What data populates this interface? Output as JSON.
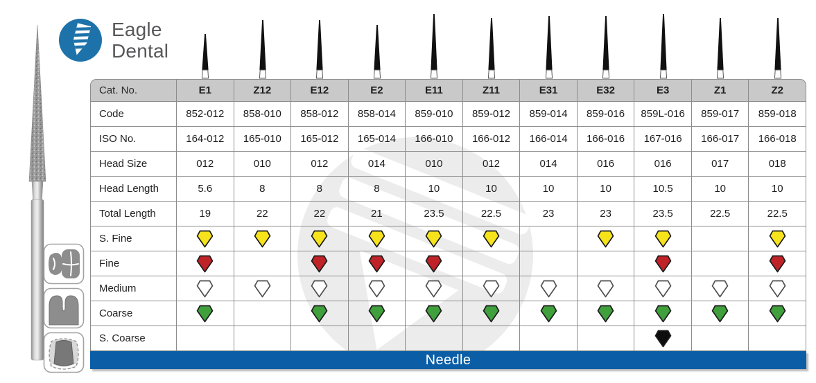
{
  "brand": {
    "line1": "Eagle",
    "line2": "Dental"
  },
  "colors": {
    "accent_blue": "#0b5ea6",
    "logo_blue": "#1e72aa",
    "header_gray": "#c9c9c9",
    "grits": {
      "s_fine": "#f6e31b",
      "fine": "#bf2227",
      "medium": "#ffffff",
      "coarse": "#3fa03c",
      "s_coarse": "#0d0d0d"
    }
  },
  "side_icons": [
    {
      "name": "molar-occlusal"
    },
    {
      "name": "crown-section"
    },
    {
      "name": "tooth-prep"
    }
  ],
  "table": {
    "corner_label": "Cat. No.",
    "footer_label": "Needle",
    "spec_rows": [
      {
        "key": "code",
        "label": "Code"
      },
      {
        "key": "iso",
        "label": "ISO No."
      },
      {
        "key": "head_size",
        "label": "Head Size"
      },
      {
        "key": "head_length",
        "label": "Head Length"
      },
      {
        "key": "total_length",
        "label": "Total Length"
      }
    ],
    "grit_rows": [
      {
        "key": "s_fine",
        "label": "S. Fine"
      },
      {
        "key": "fine",
        "label": "Fine"
      },
      {
        "key": "medium",
        "label": "Medium"
      },
      {
        "key": "coarse",
        "label": "Coarse"
      },
      {
        "key": "s_coarse",
        "label": "S. Coarse"
      }
    ],
    "columns": [
      {
        "cat_no": "E1",
        "code": "852-012",
        "iso": "164-012",
        "head_size": "012",
        "head_length": "5.6",
        "total_length": "19",
        "grits": {
          "s_fine": true,
          "fine": true,
          "medium": true,
          "coarse": true,
          "s_coarse": false
        }
      },
      {
        "cat_no": "Z12",
        "code": "858-010",
        "iso": "165-010",
        "head_size": "010",
        "head_length": "8",
        "total_length": "22",
        "grits": {
          "s_fine": true,
          "fine": false,
          "medium": true,
          "coarse": false,
          "s_coarse": false
        }
      },
      {
        "cat_no": "E12",
        "code": "858-012",
        "iso": "165-012",
        "head_size": "012",
        "head_length": "8",
        "total_length": "22",
        "grits": {
          "s_fine": true,
          "fine": true,
          "medium": true,
          "coarse": true,
          "s_coarse": false
        }
      },
      {
        "cat_no": "E2",
        "code": "858-014",
        "iso": "165-014",
        "head_size": "014",
        "head_length": "8",
        "total_length": "21",
        "grits": {
          "s_fine": true,
          "fine": true,
          "medium": true,
          "coarse": true,
          "s_coarse": false
        }
      },
      {
        "cat_no": "E11",
        "code": "859-010",
        "iso": "166-010",
        "head_size": "010",
        "head_length": "10",
        "total_length": "23.5",
        "grits": {
          "s_fine": true,
          "fine": true,
          "medium": true,
          "coarse": true,
          "s_coarse": false
        }
      },
      {
        "cat_no": "Z11",
        "code": "859-012",
        "iso": "166-012",
        "head_size": "012",
        "head_length": "10",
        "total_length": "22.5",
        "grits": {
          "s_fine": true,
          "fine": false,
          "medium": true,
          "coarse": true,
          "s_coarse": false
        }
      },
      {
        "cat_no": "E31",
        "code": "859-014",
        "iso": "166-014",
        "head_size": "014",
        "head_length": "10",
        "total_length": "23",
        "grits": {
          "s_fine": false,
          "fine": false,
          "medium": true,
          "coarse": true,
          "s_coarse": false
        }
      },
      {
        "cat_no": "E32",
        "code": "859-016",
        "iso": "166-016",
        "head_size": "016",
        "head_length": "10",
        "total_length": "23",
        "grits": {
          "s_fine": true,
          "fine": false,
          "medium": true,
          "coarse": true,
          "s_coarse": false
        }
      },
      {
        "cat_no": "E3",
        "code": "859L-016",
        "iso": "167-016",
        "head_size": "016",
        "head_length": "10.5",
        "total_length": "23.5",
        "grits": {
          "s_fine": true,
          "fine": true,
          "medium": true,
          "coarse": true,
          "s_coarse": true
        }
      },
      {
        "cat_no": "Z1",
        "code": "859-017",
        "iso": "166-017",
        "head_size": "017",
        "head_length": "10",
        "total_length": "22.5",
        "grits": {
          "s_fine": false,
          "fine": false,
          "medium": true,
          "coarse": true,
          "s_coarse": false
        }
      },
      {
        "cat_no": "Z2",
        "code": "859-018",
        "iso": "166-018",
        "head_size": "018",
        "head_length": "10",
        "total_length": "22.5",
        "grits": {
          "s_fine": true,
          "fine": true,
          "medium": true,
          "coarse": true,
          "s_coarse": false
        }
      }
    ]
  }
}
